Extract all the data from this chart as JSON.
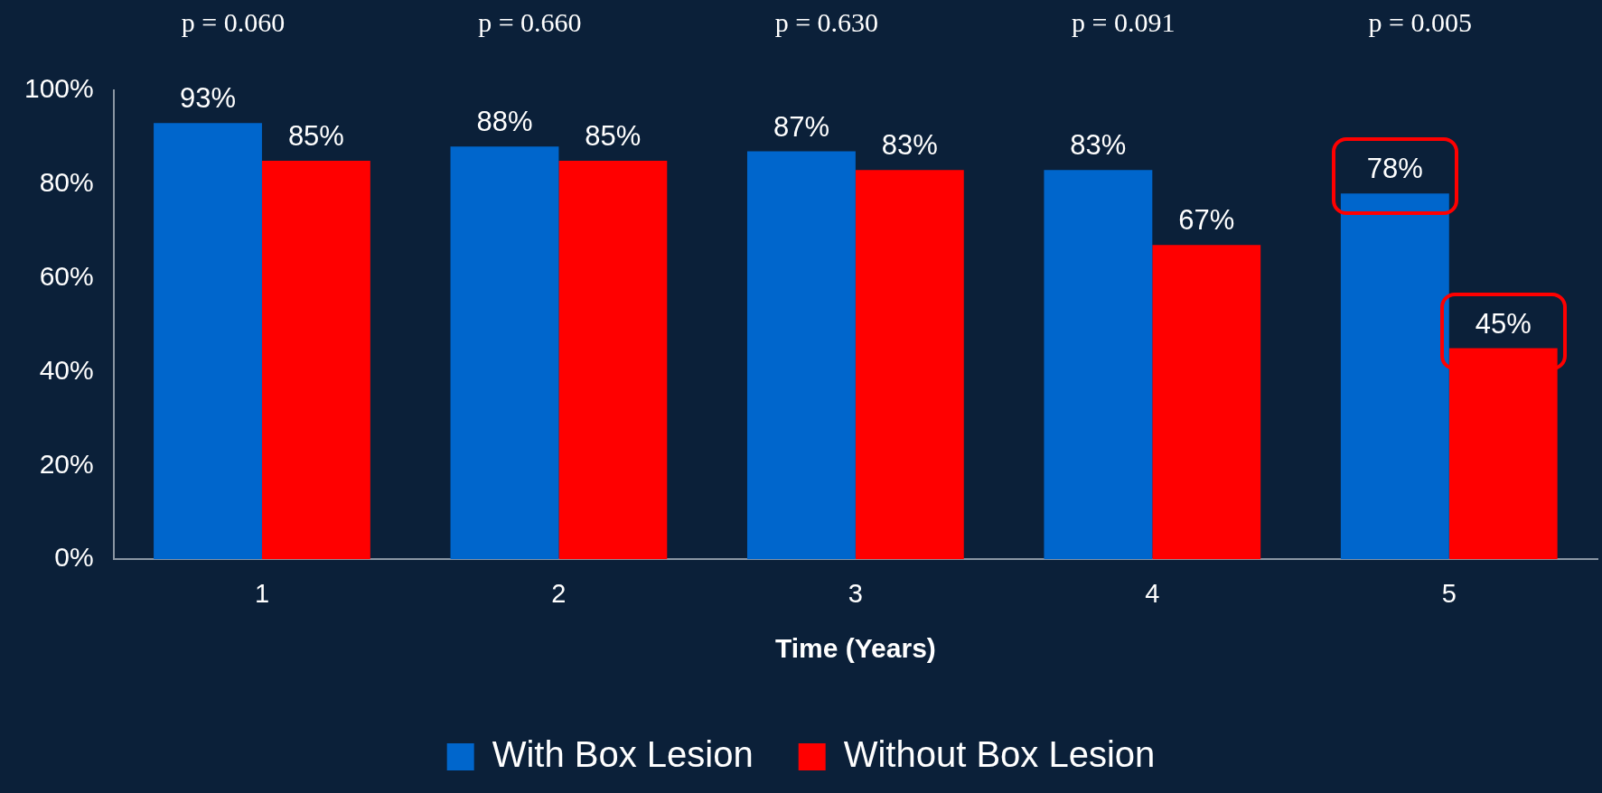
{
  "chart_data": {
    "type": "bar",
    "xlabel": "Time (Years)",
    "categories": [
      "1",
      "2",
      "3",
      "4",
      "5"
    ],
    "series": [
      {
        "name": "With Box Lesion",
        "color": "#0066cc",
        "values": [
          93,
          88,
          87,
          83,
          78
        ],
        "value_labels": [
          "93%",
          "88%",
          "87%",
          "83%",
          "78%"
        ]
      },
      {
        "name": "Without Box Lesion",
        "color": "#ff0000",
        "values": [
          85,
          85,
          83,
          67,
          45
        ],
        "value_labels": [
          "85%",
          "85%",
          "83%",
          "67%",
          "45%"
        ]
      }
    ],
    "ylim": [
      0,
      100
    ],
    "yticks": [
      {
        "value": 0,
        "label": "0%"
      },
      {
        "value": 20,
        "label": "20%"
      },
      {
        "value": 40,
        "label": "40%"
      },
      {
        "value": 60,
        "label": "60%"
      },
      {
        "value": 80,
        "label": "80%"
      },
      {
        "value": 100,
        "label": "100%"
      }
    ],
    "annotations": [
      "p = 0.060",
      "p = 0.660",
      "p = 0.630",
      "p = 0.091",
      "p = 0.005"
    ],
    "grid": false,
    "legend": "bottom"
  }
}
